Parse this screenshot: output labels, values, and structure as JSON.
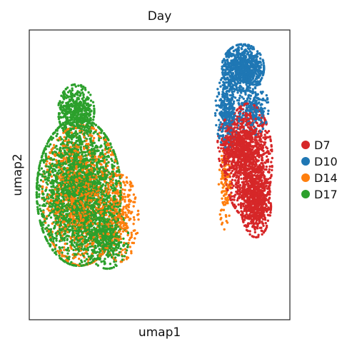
{
  "chart_data": {
    "type": "scatter",
    "title": "Day",
    "xlabel": "umap1",
    "ylabel": "umap2",
    "axis_ticks": "none",
    "grid": false,
    "legend_position": "right",
    "x_range": [
      0,
      100
    ],
    "y_range": [
      0,
      100
    ],
    "series": [
      {
        "name": "D7",
        "color": "#d62728",
        "clusters": [
          {
            "cx": 84,
            "cy": 55,
            "rx": 8,
            "ry": 17,
            "n": 1200
          },
          {
            "cx": 87,
            "cy": 40,
            "rx": 5,
            "ry": 10,
            "n": 550
          },
          {
            "cx": 78,
            "cy": 60,
            "rx": 5,
            "ry": 9,
            "n": 300
          }
        ]
      },
      {
        "name": "D10",
        "color": "#1f77b4",
        "clusters": [
          {
            "cx": 82,
            "cy": 87,
            "rx": 7,
            "ry": 7,
            "n": 800
          },
          {
            "cx": 76,
            "cy": 72,
            "rx": 4,
            "ry": 11,
            "n": 350
          },
          {
            "cx": 86,
            "cy": 73,
            "rx": 5,
            "ry": 8,
            "n": 250
          }
        ]
      },
      {
        "name": "D14",
        "color": "#ff7f0e",
        "clusters": [
          {
            "cx": 20,
            "cy": 43,
            "rx": 13,
            "ry": 21,
            "n": 1100
          },
          {
            "cx": 35,
            "cy": 35,
            "rx": 6,
            "ry": 13,
            "n": 300
          },
          {
            "cx": 75,
            "cy": 45,
            "rx": 2,
            "ry": 12,
            "n": 100
          }
        ]
      },
      {
        "name": "D17",
        "color": "#2ca02c",
        "clusters": [
          {
            "cx": 19,
            "cy": 44,
            "rx": 14,
            "ry": 22,
            "n": 2600
          },
          {
            "cx": 18,
            "cy": 72,
            "rx": 6,
            "ry": 8,
            "n": 500
          },
          {
            "cx": 30,
            "cy": 28,
            "rx": 7,
            "ry": 9,
            "n": 400
          }
        ]
      }
    ]
  }
}
